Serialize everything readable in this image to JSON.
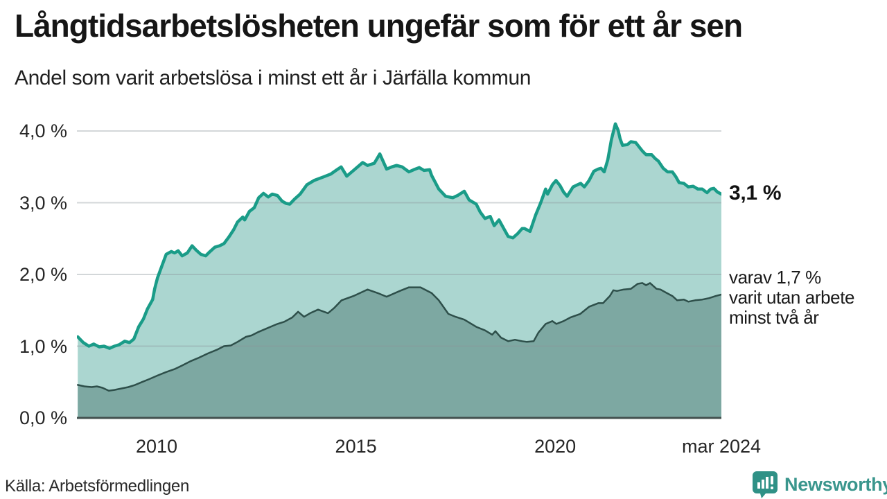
{
  "header": {
    "title": "Långtidsarbetslösheten ungefär som för ett år sen",
    "subtitle": "Andel som varit arbetslösa i minst ett år i Järfälla kommun"
  },
  "footer": {
    "source": "Källa: Arbetsförmedlingen",
    "logo_text": "Newsworthy",
    "logo_color": "#2f9186",
    "logo_text_color": "#3a968d"
  },
  "chart_data": {
    "type": "area",
    "title": "Långtidsarbetslösheten ungefär som för ett år sen",
    "subtitle": "Andel som varit arbetslösa i minst ett år i Järfälla kommun",
    "grid": "horizontal-only",
    "x_axis": {
      "range": [
        2008.0,
        2024.17
      ],
      "ticks": [
        {
          "label": "2010",
          "year": 2010
        },
        {
          "label": "2015",
          "year": 2015
        },
        {
          "label": "2020",
          "year": 2020
        },
        {
          "label": "mar 2024",
          "year": 2024.17
        }
      ]
    },
    "y_axis": {
      "range": [
        0,
        4.15
      ],
      "unit": "%",
      "ticks": [
        {
          "label": "4,0 %",
          "value": 4
        },
        {
          "label": "3,0 %",
          "value": 3
        },
        {
          "label": "2,0 %",
          "value": 2
        },
        {
          "label": "1,0 %",
          "value": 1
        },
        {
          "label": "0,0 %",
          "value": 0
        }
      ]
    },
    "annotations": {
      "total_label": "3,1 %",
      "subset_label_lines": [
        "varav 1,7 %",
        "varit utan arbete",
        "minst två år"
      ]
    },
    "colors": {
      "series_total_line": "#1a9c88",
      "series_total_fill": "#abd6d0",
      "series_subset_line": "#2e4f4a",
      "series_subset_fill": "#7da8a2",
      "gridline": "rgba(140,150,155,0.38)",
      "baseline": "#42504e"
    },
    "series": [
      {
        "name": "Arbetslösa minst ett år",
        "end_value": 3.1,
        "points": [
          [
            2008.02,
            1.13
          ],
          [
            2008.16,
            1.05
          ],
          [
            2008.3,
            1.0
          ],
          [
            2008.42,
            1.03
          ],
          [
            2008.56,
            0.99
          ],
          [
            2008.68,
            1.0
          ],
          [
            2008.82,
            0.97
          ],
          [
            2008.94,
            1.0
          ],
          [
            2009.06,
            1.02
          ],
          [
            2009.2,
            1.07
          ],
          [
            2009.32,
            1.05
          ],
          [
            2009.43,
            1.1
          ],
          [
            2009.55,
            1.27
          ],
          [
            2009.67,
            1.38
          ],
          [
            2009.77,
            1.52
          ],
          [
            2009.9,
            1.65
          ],
          [
            2009.95,
            1.8
          ],
          [
            2010.02,
            1.95
          ],
          [
            2010.12,
            2.1
          ],
          [
            2010.24,
            2.28
          ],
          [
            2010.37,
            2.32
          ],
          [
            2010.45,
            2.3
          ],
          [
            2010.54,
            2.33
          ],
          [
            2010.64,
            2.26
          ],
          [
            2010.77,
            2.3
          ],
          [
            2010.89,
            2.4
          ],
          [
            2010.99,
            2.34
          ],
          [
            2011.11,
            2.28
          ],
          [
            2011.23,
            2.26
          ],
          [
            2011.34,
            2.32
          ],
          [
            2011.46,
            2.38
          ],
          [
            2011.58,
            2.4
          ],
          [
            2011.69,
            2.43
          ],
          [
            2011.81,
            2.52
          ],
          [
            2011.93,
            2.62
          ],
          [
            2012.03,
            2.73
          ],
          [
            2012.16,
            2.8
          ],
          [
            2012.21,
            2.76
          ],
          [
            2012.33,
            2.88
          ],
          [
            2012.45,
            2.93
          ],
          [
            2012.56,
            3.07
          ],
          [
            2012.68,
            3.13
          ],
          [
            2012.8,
            3.08
          ],
          [
            2012.9,
            3.12
          ],
          [
            2013.03,
            3.1
          ],
          [
            2013.15,
            3.02
          ],
          [
            2013.25,
            2.99
          ],
          [
            2013.34,
            2.98
          ],
          [
            2013.46,
            3.05
          ],
          [
            2013.6,
            3.12
          ],
          [
            2013.77,
            3.25
          ],
          [
            2013.95,
            3.31
          ],
          [
            2014.19,
            3.36
          ],
          [
            2014.37,
            3.4
          ],
          [
            2014.5,
            3.45
          ],
          [
            2014.63,
            3.5
          ],
          [
            2014.77,
            3.37
          ],
          [
            2014.94,
            3.45
          ],
          [
            2015.17,
            3.56
          ],
          [
            2015.29,
            3.52
          ],
          [
            2015.46,
            3.55
          ],
          [
            2015.6,
            3.68
          ],
          [
            2015.77,
            3.47
          ],
          [
            2015.9,
            3.5
          ],
          [
            2016.02,
            3.52
          ],
          [
            2016.16,
            3.5
          ],
          [
            2016.33,
            3.43
          ],
          [
            2016.45,
            3.46
          ],
          [
            2016.59,
            3.49
          ],
          [
            2016.71,
            3.45
          ],
          [
            2016.85,
            3.46
          ],
          [
            2016.9,
            3.38
          ],
          [
            2017.08,
            3.19
          ],
          [
            2017.25,
            3.09
          ],
          [
            2017.43,
            3.07
          ],
          [
            2017.55,
            3.1
          ],
          [
            2017.72,
            3.16
          ],
          [
            2017.84,
            3.04
          ],
          [
            2018.02,
            2.98
          ],
          [
            2018.12,
            2.87
          ],
          [
            2018.24,
            2.78
          ],
          [
            2018.37,
            2.81
          ],
          [
            2018.47,
            2.68
          ],
          [
            2018.59,
            2.76
          ],
          [
            2018.71,
            2.64
          ],
          [
            2018.82,
            2.53
          ],
          [
            2018.94,
            2.51
          ],
          [
            2019.06,
            2.57
          ],
          [
            2019.17,
            2.64
          ],
          [
            2019.23,
            2.64
          ],
          [
            2019.37,
            2.6
          ],
          [
            2019.51,
            2.83
          ],
          [
            2019.63,
            2.99
          ],
          [
            2019.76,
            3.19
          ],
          [
            2019.81,
            3.12
          ],
          [
            2019.93,
            3.25
          ],
          [
            2020.02,
            3.31
          ],
          [
            2020.12,
            3.24
          ],
          [
            2020.21,
            3.15
          ],
          [
            2020.3,
            3.09
          ],
          [
            2020.45,
            3.22
          ],
          [
            2020.56,
            3.25
          ],
          [
            2020.64,
            3.27
          ],
          [
            2020.73,
            3.22
          ],
          [
            2020.85,
            3.31
          ],
          [
            2020.97,
            3.44
          ],
          [
            2021.08,
            3.47
          ],
          [
            2021.15,
            3.48
          ],
          [
            2021.23,
            3.43
          ],
          [
            2021.32,
            3.6
          ],
          [
            2021.41,
            3.88
          ],
          [
            2021.51,
            4.1
          ],
          [
            2021.58,
            4.01
          ],
          [
            2021.63,
            3.89
          ],
          [
            2021.69,
            3.8
          ],
          [
            2021.81,
            3.81
          ],
          [
            2021.9,
            3.85
          ],
          [
            2022.02,
            3.84
          ],
          [
            2022.19,
            3.72
          ],
          [
            2022.28,
            3.67
          ],
          [
            2022.42,
            3.67
          ],
          [
            2022.5,
            3.62
          ],
          [
            2022.59,
            3.58
          ],
          [
            2022.71,
            3.48
          ],
          [
            2022.82,
            3.43
          ],
          [
            2022.94,
            3.43
          ],
          [
            2023.03,
            3.36
          ],
          [
            2023.11,
            3.28
          ],
          [
            2023.23,
            3.27
          ],
          [
            2023.34,
            3.22
          ],
          [
            2023.46,
            3.23
          ],
          [
            2023.58,
            3.19
          ],
          [
            2023.69,
            3.19
          ],
          [
            2023.81,
            3.14
          ],
          [
            2023.9,
            3.19
          ],
          [
            2023.98,
            3.2
          ],
          [
            2024.07,
            3.15
          ],
          [
            2024.17,
            3.12
          ]
        ]
      },
      {
        "name": "varav utan arbete minst två år",
        "end_value": 1.7,
        "points": [
          [
            2008.02,
            0.46
          ],
          [
            2008.19,
            0.44
          ],
          [
            2008.37,
            0.43
          ],
          [
            2008.5,
            0.44
          ],
          [
            2008.64,
            0.42
          ],
          [
            2008.8,
            0.38
          ],
          [
            2008.94,
            0.39
          ],
          [
            2009.11,
            0.41
          ],
          [
            2009.29,
            0.43
          ],
          [
            2009.46,
            0.46
          ],
          [
            2009.63,
            0.5
          ],
          [
            2009.81,
            0.54
          ],
          [
            2010.02,
            0.59
          ],
          [
            2010.24,
            0.64
          ],
          [
            2010.45,
            0.68
          ],
          [
            2010.64,
            0.73
          ],
          [
            2010.85,
            0.79
          ],
          [
            2011.06,
            0.84
          ],
          [
            2011.29,
            0.9
          ],
          [
            2011.51,
            0.95
          ],
          [
            2011.69,
            1.0
          ],
          [
            2011.86,
            1.01
          ],
          [
            2012.03,
            1.06
          ],
          [
            2012.24,
            1.13
          ],
          [
            2012.38,
            1.15
          ],
          [
            2012.56,
            1.2
          ],
          [
            2012.73,
            1.24
          ],
          [
            2012.9,
            1.28
          ],
          [
            2013.03,
            1.31
          ],
          [
            2013.2,
            1.34
          ],
          [
            2013.4,
            1.4
          ],
          [
            2013.55,
            1.48
          ],
          [
            2013.7,
            1.41
          ],
          [
            2013.85,
            1.46
          ],
          [
            2014.05,
            1.51
          ],
          [
            2014.3,
            1.46
          ],
          [
            2014.45,
            1.53
          ],
          [
            2014.64,
            1.64
          ],
          [
            2014.94,
            1.7
          ],
          [
            2015.29,
            1.79
          ],
          [
            2015.55,
            1.74
          ],
          [
            2015.77,
            1.69
          ],
          [
            2016.1,
            1.77
          ],
          [
            2016.33,
            1.82
          ],
          [
            2016.62,
            1.82
          ],
          [
            2016.9,
            1.74
          ],
          [
            2017.08,
            1.64
          ],
          [
            2017.32,
            1.45
          ],
          [
            2017.5,
            1.41
          ],
          [
            2017.72,
            1.37
          ],
          [
            2018.02,
            1.27
          ],
          [
            2018.24,
            1.22
          ],
          [
            2018.42,
            1.16
          ],
          [
            2018.5,
            1.21
          ],
          [
            2018.64,
            1.12
          ],
          [
            2018.82,
            1.07
          ],
          [
            2018.99,
            1.09
          ],
          [
            2019.17,
            1.07
          ],
          [
            2019.29,
            1.06
          ],
          [
            2019.46,
            1.07
          ],
          [
            2019.58,
            1.19
          ],
          [
            2019.76,
            1.31
          ],
          [
            2019.93,
            1.35
          ],
          [
            2020.03,
            1.31
          ],
          [
            2020.21,
            1.35
          ],
          [
            2020.38,
            1.4
          ],
          [
            2020.63,
            1.45
          ],
          [
            2020.85,
            1.55
          ],
          [
            2021.08,
            1.6
          ],
          [
            2021.2,
            1.6
          ],
          [
            2021.37,
            1.7
          ],
          [
            2021.46,
            1.78
          ],
          [
            2021.55,
            1.77
          ],
          [
            2021.72,
            1.79
          ],
          [
            2021.9,
            1.8
          ],
          [
            2022.07,
            1.87
          ],
          [
            2022.19,
            1.88
          ],
          [
            2022.28,
            1.85
          ],
          [
            2022.38,
            1.88
          ],
          [
            2022.54,
            1.8
          ],
          [
            2022.64,
            1.79
          ],
          [
            2022.77,
            1.75
          ],
          [
            2022.94,
            1.7
          ],
          [
            2023.06,
            1.64
          ],
          [
            2023.23,
            1.65
          ],
          [
            2023.34,
            1.62
          ],
          [
            2023.51,
            1.64
          ],
          [
            2023.69,
            1.65
          ],
          [
            2023.86,
            1.67
          ],
          [
            2024.03,
            1.7
          ],
          [
            2024.17,
            1.72
          ]
        ]
      }
    ]
  }
}
